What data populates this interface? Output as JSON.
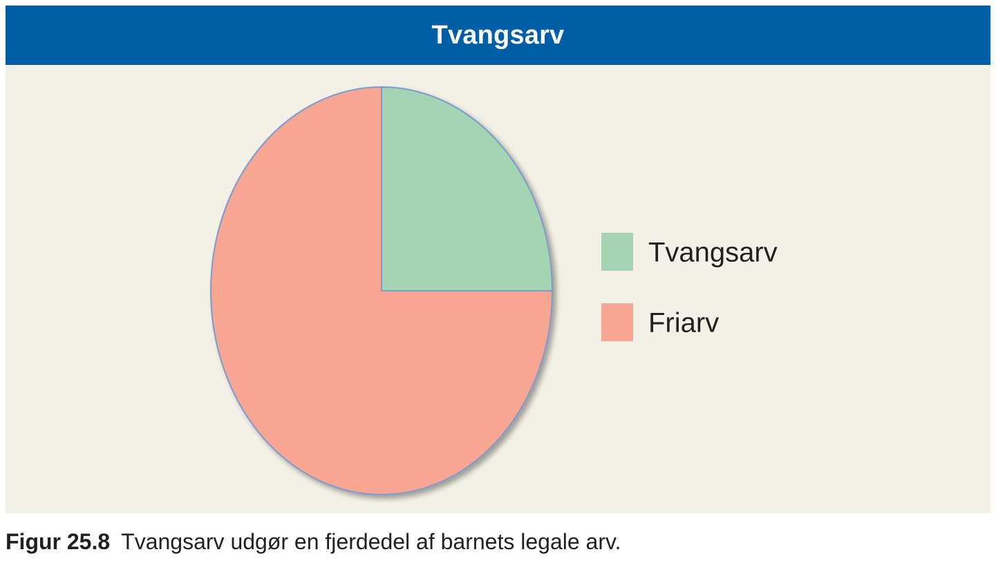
{
  "header": {
    "title": "Tvangsarv"
  },
  "chart_data": {
    "type": "pie",
    "title": "Tvangsarv",
    "slices": [
      {
        "name": "Tvangsarv",
        "value": 25,
        "color": "#a3d5b2"
      },
      {
        "name": "Friarv",
        "value": 75,
        "color": "#f7a692"
      }
    ],
    "start_angle": "12 o'clock",
    "direction": "clockwise",
    "legend_position": "right",
    "outline_color": "#7b9ad0"
  },
  "caption": {
    "label": "Figur 25.8",
    "text": "Tvangsarv udgør en fjerdedel af barnets legale arv."
  }
}
